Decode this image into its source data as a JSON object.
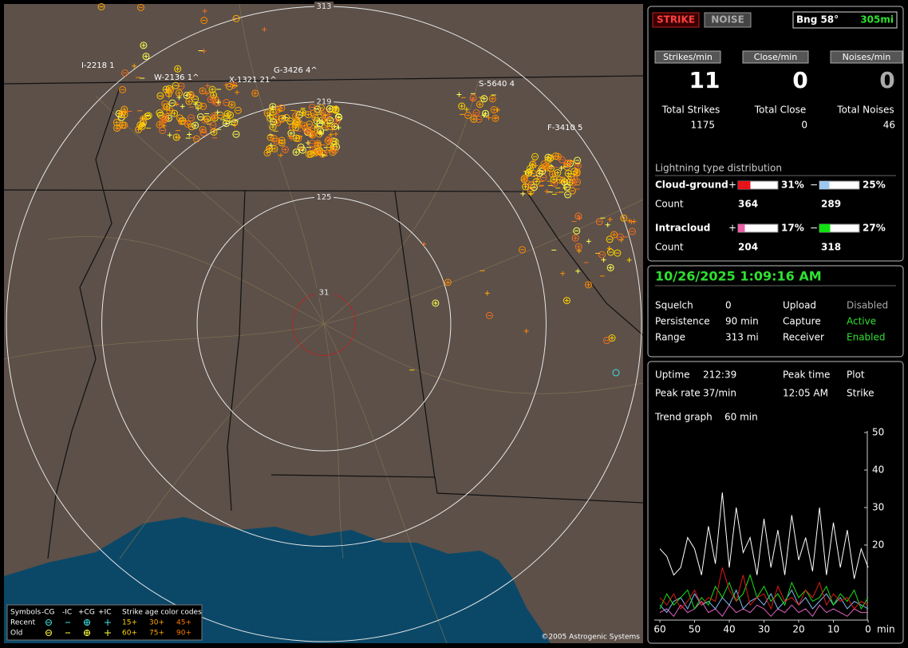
{
  "map": {
    "rings": [
      313,
      219,
      125,
      31
    ],
    "stations": [
      "I-2218 1",
      "W-2136 1^",
      "X-1321 21^",
      "G-3426 4^",
      "S-5640 4",
      "F-3410 5"
    ]
  },
  "legend": {
    "symbols": "Symbols",
    "columns": [
      "-CG",
      "-IC",
      "+CG",
      "+IC"
    ],
    "age_title": "Strike age color codes",
    "rows": [
      "Recent",
      "Old"
    ],
    "ages_recent": [
      "15+",
      "30+",
      "45+"
    ],
    "ages_old": [
      "60+",
      "75+",
      "90+"
    ]
  },
  "copyright": "©2005 Astrogenic Systems",
  "header": {
    "strike": "STRIKE",
    "noise": "NOISE",
    "bearing": "Bng 58°",
    "distance": "305mi"
  },
  "rates": [
    {
      "label": "Strikes/min",
      "value": 11
    },
    {
      "label": "Close/min",
      "value": 0
    },
    {
      "label": "Noises/min",
      "value": 0
    }
  ],
  "totals": [
    {
      "label": "Total Strikes",
      "value": 1175
    },
    {
      "label": "Total Close",
      "value": 0
    },
    {
      "label": "Total Noises",
      "value": 46
    }
  ],
  "distribution": {
    "title": "Lightning type distribution",
    "count_label": "Count",
    "rows": [
      {
        "name": "Cloud-ground",
        "positive": {
          "sign": "+",
          "percent": 31,
          "percent_label": "31%",
          "count": 364,
          "color": "#e8141c"
        },
        "negative": {
          "sign": "−",
          "percent": 25,
          "percent_label": "25%",
          "count": 289,
          "color": "#9cc8f0"
        }
      },
      {
        "name": "Intracloud",
        "positive": {
          "sign": "+",
          "percent": 17,
          "percent_label": "17%",
          "count": 204,
          "color": "#e860a8"
        },
        "negative": {
          "sign": "−",
          "percent": 27,
          "percent_label": "27%",
          "count": 318,
          "color": "#10e010"
        }
      }
    ]
  },
  "timestamp": "10/26/2025 1:09:16 AM",
  "settings": [
    [
      "Squelch",
      "0"
    ],
    [
      "Persistence",
      "90 min"
    ],
    [
      "Range",
      "313 mi"
    ]
  ],
  "status": [
    [
      "Upload",
      "Disabled"
    ],
    [
      "Capture",
      "Active"
    ],
    [
      "Receiver",
      "Enabled"
    ]
  ],
  "info": [
    [
      "Uptime",
      "212:39",
      "Peak time",
      "Plot"
    ],
    [
      "Peak rate",
      "37/min",
      "12:05 AM",
      "Strike"
    ]
  ],
  "trend": [
    "Trend graph",
    "60 min"
  ],
  "chart_data": {
    "type": "line",
    "xlabel": "min",
    "x": [
      60,
      58,
      56,
      54,
      52,
      50,
      48,
      46,
      44,
      42,
      40,
      38,
      36,
      34,
      32,
      30,
      28,
      26,
      24,
      22,
      20,
      18,
      16,
      14,
      12,
      10,
      8,
      6,
      4,
      2,
      0
    ],
    "xlim": [
      60,
      0
    ],
    "xticks": [
      60,
      50,
      40,
      30,
      20,
      10,
      0
    ],
    "ylim": [
      0,
      50
    ],
    "yticks": [
      20,
      30,
      40,
      50
    ],
    "series": [
      {
        "color": "#ffffff",
        "values": [
          19,
          17,
          12,
          14,
          22,
          19,
          12,
          25,
          15,
          34,
          14,
          30,
          18,
          22,
          12,
          27,
          14,
          24,
          12,
          28,
          16,
          22,
          13,
          30,
          12,
          26,
          14,
          24,
          11,
          19,
          14
        ]
      },
      {
        "color": "#e01818",
        "values": [
          6,
          4,
          7,
          3,
          5,
          8,
          4,
          6,
          5,
          14,
          8,
          5,
          12,
          4,
          6,
          7,
          3,
          9,
          5,
          6,
          4,
          8,
          6,
          10,
          4,
          7,
          5,
          6,
          3,
          5,
          4
        ]
      },
      {
        "color": "#18e018",
        "values": [
          3,
          7,
          4,
          6,
          8,
          3,
          6,
          4,
          9,
          6,
          10,
          5,
          7,
          12,
          6,
          9,
          5,
          7,
          4,
          10,
          6,
          8,
          5,
          6,
          9,
          4,
          7,
          5,
          8,
          3,
          6
        ]
      },
      {
        "color": "#80b8f0",
        "values": [
          4,
          2,
          5,
          6,
          3,
          7,
          4,
          5,
          3,
          6,
          4,
          8,
          3,
          5,
          6,
          4,
          7,
          3,
          5,
          8,
          4,
          6,
          3,
          5,
          7,
          4,
          6,
          3,
          5,
          4,
          3
        ]
      },
      {
        "color": "#e060c0",
        "values": [
          2,
          3,
          1,
          4,
          2,
          3,
          5,
          2,
          3,
          1,
          4,
          2,
          3,
          2,
          4,
          3,
          1,
          3,
          2,
          4,
          2,
          3,
          1,
          4,
          2,
          3,
          2,
          1,
          3,
          2,
          2
        ]
      }
    ]
  }
}
